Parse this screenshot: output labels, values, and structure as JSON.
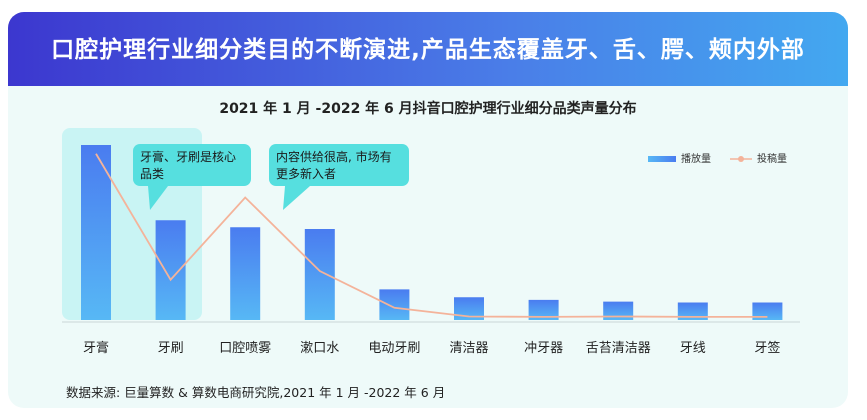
{
  "banner": {
    "title": "口腔护理行业细分类目的不断演进,产品生态覆盖牙、舌、腭、颊内外部"
  },
  "chart_title": "2021 年 1 月 -2022 年 6 月抖音口腔护理行业细分品类声量分布",
  "source": "数据来源: 巨量算数 & 算数电商研究院,2021 年 1 月 -2022 年 6 月",
  "colors": {
    "bar_top": "#4a7cf0",
    "bar_bottom": "#57b8f5",
    "line": "#f4b39a",
    "highlight": "#c9f4f4",
    "callout": "#56dfdf",
    "banner_start": "#3c37cf",
    "banner_end": "#43a8f0"
  },
  "callouts": [
    {
      "text_lines": [
        "牙膏、牙刷是核心",
        "品类"
      ]
    },
    {
      "text_lines": [
        "内容供给很高, 市场有",
        "更多新入者"
      ]
    }
  ],
  "chart_data": {
    "type": "bar",
    "categories": [
      "牙膏",
      "牙刷",
      "口腔喷雾",
      "漱口水",
      "电动牙刷",
      "清洁器",
      "冲牙器",
      "舌苔清洁器",
      "牙线",
      "牙签"
    ],
    "series": [
      {
        "name": "播放量",
        "type": "bar",
        "values": [
          100,
          57,
          53,
          52,
          17.5,
          13,
          11.5,
          10.5,
          10,
          10
        ]
      },
      {
        "name": "投稿量",
        "type": "line",
        "values": [
          95,
          23,
          70,
          28,
          7,
          2,
          1.8,
          2,
          1.8,
          1.8
        ]
      }
    ],
    "ylim": [
      0,
      100
    ],
    "grid": false,
    "legend": "top-right"
  }
}
